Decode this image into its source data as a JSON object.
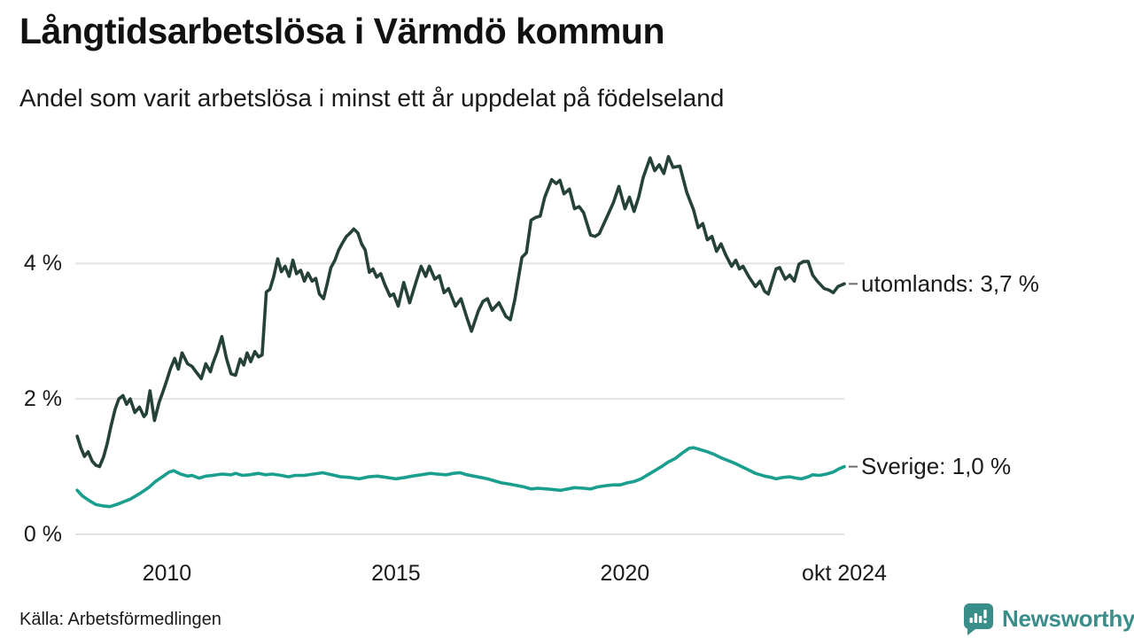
{
  "footer": {
    "source": "Källa: Arbetsförmedlingen",
    "brand": "Newsworthy",
    "brand_color": "#3a8e89",
    "logo_icon": "speech-bubble-bar-chart-icon"
  },
  "chart_data": {
    "type": "line",
    "title": "Långtidsarbetslösa i Värmdö kommun",
    "subtitle": "Andel som varit arbetslösa i minst ett år uppdelat på födelseland",
    "unit": "%",
    "grid": true,
    "grid_color": "#e2e2e2",
    "legend_position": "right-of-line-ends",
    "xlim": [
      2008.0,
      2024.79
    ],
    "ylim": [
      0,
      5.9
    ],
    "x_ticks": [
      {
        "t": 2010.0,
        "label": "2010"
      },
      {
        "t": 2015.0,
        "label": "2015"
      },
      {
        "t": 2020.0,
        "label": "2020"
      },
      {
        "t": 2024.79,
        "label": "okt 2024"
      }
    ],
    "y_ticks": [
      {
        "v": 0,
        "label": "0 %"
      },
      {
        "v": 2,
        "label": "2 %"
      },
      {
        "v": 4,
        "label": "4 %"
      }
    ],
    "series": [
      {
        "name": "utomlands",
        "label": "utomlands: 3,7 %",
        "last_value": "3,7 %",
        "color": "#254139",
        "points": [
          [
            2008.04,
            1.45
          ],
          [
            2008.12,
            1.28
          ],
          [
            2008.2,
            1.15
          ],
          [
            2008.28,
            1.22
          ],
          [
            2008.37,
            1.08
          ],
          [
            2008.45,
            1.02
          ],
          [
            2008.53,
            1.0
          ],
          [
            2008.62,
            1.15
          ],
          [
            2008.7,
            1.35
          ],
          [
            2008.78,
            1.6
          ],
          [
            2008.87,
            1.85
          ],
          [
            2008.95,
            2.0
          ],
          [
            2009.04,
            2.05
          ],
          [
            2009.12,
            1.92
          ],
          [
            2009.2,
            2.0
          ],
          [
            2009.3,
            1.8
          ],
          [
            2009.4,
            1.88
          ],
          [
            2009.5,
            1.74
          ],
          [
            2009.55,
            1.78
          ],
          [
            2009.63,
            2.12
          ],
          [
            2009.73,
            1.68
          ],
          [
            2009.83,
            1.95
          ],
          [
            2009.92,
            2.12
          ],
          [
            2010.0,
            2.28
          ],
          [
            2010.08,
            2.45
          ],
          [
            2010.17,
            2.6
          ],
          [
            2010.25,
            2.44
          ],
          [
            2010.33,
            2.68
          ],
          [
            2010.45,
            2.52
          ],
          [
            2010.55,
            2.48
          ],
          [
            2010.67,
            2.37
          ],
          [
            2010.75,
            2.3
          ],
          [
            2010.85,
            2.52
          ],
          [
            2010.95,
            2.4
          ],
          [
            2011.0,
            2.52
          ],
          [
            2011.1,
            2.7
          ],
          [
            2011.2,
            2.92
          ],
          [
            2011.3,
            2.6
          ],
          [
            2011.4,
            2.37
          ],
          [
            2011.5,
            2.35
          ],
          [
            2011.6,
            2.59
          ],
          [
            2011.68,
            2.5
          ],
          [
            2011.75,
            2.68
          ],
          [
            2011.83,
            2.55
          ],
          [
            2011.92,
            2.7
          ],
          [
            2012.0,
            2.62
          ],
          [
            2012.08,
            2.65
          ],
          [
            2012.17,
            3.58
          ],
          [
            2012.25,
            3.62
          ],
          [
            2012.33,
            3.8
          ],
          [
            2012.42,
            4.07
          ],
          [
            2012.5,
            3.88
          ],
          [
            2012.58,
            3.96
          ],
          [
            2012.67,
            3.81
          ],
          [
            2012.75,
            4.05
          ],
          [
            2012.83,
            3.85
          ],
          [
            2012.92,
            3.9
          ],
          [
            2013.0,
            3.74
          ],
          [
            2013.08,
            3.86
          ],
          [
            2013.17,
            3.74
          ],
          [
            2013.25,
            3.78
          ],
          [
            2013.33,
            3.55
          ],
          [
            2013.42,
            3.48
          ],
          [
            2013.5,
            3.7
          ],
          [
            2013.58,
            3.94
          ],
          [
            2013.67,
            4.05
          ],
          [
            2013.75,
            4.2
          ],
          [
            2013.83,
            4.3
          ],
          [
            2013.92,
            4.4
          ],
          [
            2014.0,
            4.45
          ],
          [
            2014.08,
            4.51
          ],
          [
            2014.17,
            4.45
          ],
          [
            2014.25,
            4.29
          ],
          [
            2014.33,
            4.2
          ],
          [
            2014.42,
            3.87
          ],
          [
            2014.5,
            3.92
          ],
          [
            2014.58,
            3.8
          ],
          [
            2014.67,
            3.85
          ],
          [
            2014.75,
            3.7
          ],
          [
            2014.87,
            3.52
          ],
          [
            2014.95,
            3.55
          ],
          [
            2015.05,
            3.37
          ],
          [
            2015.17,
            3.72
          ],
          [
            2015.3,
            3.42
          ],
          [
            2015.45,
            3.75
          ],
          [
            2015.55,
            3.96
          ],
          [
            2015.65,
            3.81
          ],
          [
            2015.73,
            3.96
          ],
          [
            2015.85,
            3.77
          ],
          [
            2015.95,
            3.82
          ],
          [
            2016.05,
            3.57
          ],
          [
            2016.15,
            3.63
          ],
          [
            2016.3,
            3.37
          ],
          [
            2016.42,
            3.48
          ],
          [
            2016.55,
            3.2
          ],
          [
            2016.65,
            3.0
          ],
          [
            2016.8,
            3.3
          ],
          [
            2016.9,
            3.44
          ],
          [
            2017.0,
            3.48
          ],
          [
            2017.1,
            3.31
          ],
          [
            2017.25,
            3.42
          ],
          [
            2017.4,
            3.22
          ],
          [
            2017.5,
            3.17
          ],
          [
            2017.6,
            3.48
          ],
          [
            2017.75,
            4.09
          ],
          [
            2017.85,
            4.16
          ],
          [
            2017.95,
            4.64
          ],
          [
            2018.05,
            4.68
          ],
          [
            2018.15,
            4.7
          ],
          [
            2018.25,
            4.98
          ],
          [
            2018.4,
            5.24
          ],
          [
            2018.5,
            5.18
          ],
          [
            2018.58,
            5.23
          ],
          [
            2018.67,
            5.03
          ],
          [
            2018.79,
            5.1
          ],
          [
            2018.9,
            4.81
          ],
          [
            2019.0,
            4.84
          ],
          [
            2019.1,
            4.75
          ],
          [
            2019.25,
            4.42
          ],
          [
            2019.35,
            4.4
          ],
          [
            2019.44,
            4.44
          ],
          [
            2019.63,
            4.72
          ],
          [
            2019.75,
            4.9
          ],
          [
            2019.87,
            5.14
          ],
          [
            2020.0,
            4.81
          ],
          [
            2020.1,
            4.98
          ],
          [
            2020.2,
            4.77
          ],
          [
            2020.3,
            4.98
          ],
          [
            2020.4,
            5.27
          ],
          [
            2020.55,
            5.56
          ],
          [
            2020.65,
            5.37
          ],
          [
            2020.75,
            5.46
          ],
          [
            2020.85,
            5.33
          ],
          [
            2020.95,
            5.58
          ],
          [
            2021.05,
            5.42
          ],
          [
            2021.2,
            5.44
          ],
          [
            2021.35,
            5.05
          ],
          [
            2021.5,
            4.79
          ],
          [
            2021.6,
            4.53
          ],
          [
            2021.7,
            4.59
          ],
          [
            2021.8,
            4.35
          ],
          [
            2021.9,
            4.4
          ],
          [
            2022.0,
            4.18
          ],
          [
            2022.1,
            4.29
          ],
          [
            2022.2,
            4.13
          ],
          [
            2022.33,
            3.96
          ],
          [
            2022.42,
            4.05
          ],
          [
            2022.5,
            3.92
          ],
          [
            2022.58,
            3.96
          ],
          [
            2022.7,
            3.81
          ],
          [
            2022.85,
            3.66
          ],
          [
            2022.95,
            3.74
          ],
          [
            2023.05,
            3.59
          ],
          [
            2023.13,
            3.55
          ],
          [
            2023.3,
            3.92
          ],
          [
            2023.38,
            3.94
          ],
          [
            2023.5,
            3.77
          ],
          [
            2023.6,
            3.83
          ],
          [
            2023.7,
            3.74
          ],
          [
            2023.8,
            3.99
          ],
          [
            2023.9,
            4.03
          ],
          [
            2024.0,
            4.03
          ],
          [
            2024.1,
            3.83
          ],
          [
            2024.2,
            3.74
          ],
          [
            2024.35,
            3.63
          ],
          [
            2024.45,
            3.61
          ],
          [
            2024.55,
            3.57
          ],
          [
            2024.65,
            3.66
          ],
          [
            2024.79,
            3.7
          ]
        ]
      },
      {
        "name": "Sverige",
        "label": "Sverige: 1,0 %",
        "last_value": "1,0 %",
        "color": "#1a9e8e",
        "points": [
          [
            2008.04,
            0.65
          ],
          [
            2008.15,
            0.57
          ],
          [
            2008.3,
            0.5
          ],
          [
            2008.45,
            0.44
          ],
          [
            2008.6,
            0.42
          ],
          [
            2008.75,
            0.41
          ],
          [
            2008.9,
            0.44
          ],
          [
            2009.05,
            0.48
          ],
          [
            2009.2,
            0.52
          ],
          [
            2009.4,
            0.6
          ],
          [
            2009.6,
            0.69
          ],
          [
            2009.75,
            0.78
          ],
          [
            2009.9,
            0.85
          ],
          [
            2010.05,
            0.92
          ],
          [
            2010.15,
            0.94
          ],
          [
            2010.3,
            0.89
          ],
          [
            2010.45,
            0.86
          ],
          [
            2010.55,
            0.87
          ],
          [
            2010.7,
            0.83
          ],
          [
            2010.85,
            0.86
          ],
          [
            2011.0,
            0.87
          ],
          [
            2011.2,
            0.89
          ],
          [
            2011.4,
            0.88
          ],
          [
            2011.5,
            0.9
          ],
          [
            2011.65,
            0.87
          ],
          [
            2011.8,
            0.88
          ],
          [
            2012.0,
            0.9
          ],
          [
            2012.15,
            0.88
          ],
          [
            2012.3,
            0.89
          ],
          [
            2012.5,
            0.87
          ],
          [
            2012.65,
            0.85
          ],
          [
            2012.8,
            0.87
          ],
          [
            2013.0,
            0.87
          ],
          [
            2013.2,
            0.89
          ],
          [
            2013.4,
            0.91
          ],
          [
            2013.6,
            0.88
          ],
          [
            2013.8,
            0.85
          ],
          [
            2014.0,
            0.84
          ],
          [
            2014.2,
            0.82
          ],
          [
            2014.4,
            0.85
          ],
          [
            2014.6,
            0.86
          ],
          [
            2014.8,
            0.84
          ],
          [
            2015.0,
            0.82
          ],
          [
            2015.2,
            0.84
          ],
          [
            2015.35,
            0.86
          ],
          [
            2015.55,
            0.88
          ],
          [
            2015.75,
            0.9
          ],
          [
            2015.9,
            0.89
          ],
          [
            2016.1,
            0.88
          ],
          [
            2016.25,
            0.9
          ],
          [
            2016.4,
            0.91
          ],
          [
            2016.55,
            0.88
          ],
          [
            2016.7,
            0.86
          ],
          [
            2016.85,
            0.84
          ],
          [
            2017.0,
            0.82
          ],
          [
            2017.15,
            0.79
          ],
          [
            2017.3,
            0.76
          ],
          [
            2017.5,
            0.74
          ],
          [
            2017.65,
            0.72
          ],
          [
            2017.8,
            0.7
          ],
          [
            2017.95,
            0.67
          ],
          [
            2018.1,
            0.68
          ],
          [
            2018.3,
            0.67
          ],
          [
            2018.45,
            0.66
          ],
          [
            2018.6,
            0.65
          ],
          [
            2018.75,
            0.67
          ],
          [
            2018.9,
            0.69
          ],
          [
            2019.1,
            0.68
          ],
          [
            2019.25,
            0.67
          ],
          [
            2019.4,
            0.7
          ],
          [
            2019.6,
            0.72
          ],
          [
            2019.75,
            0.73
          ],
          [
            2019.9,
            0.73
          ],
          [
            2020.05,
            0.76
          ],
          [
            2020.2,
            0.78
          ],
          [
            2020.35,
            0.82
          ],
          [
            2020.5,
            0.88
          ],
          [
            2020.65,
            0.94
          ],
          [
            2020.8,
            1.0
          ],
          [
            2020.95,
            1.07
          ],
          [
            2021.1,
            1.12
          ],
          [
            2021.25,
            1.2
          ],
          [
            2021.4,
            1.27
          ],
          [
            2021.5,
            1.28
          ],
          [
            2021.65,
            1.25
          ],
          [
            2021.8,
            1.22
          ],
          [
            2021.95,
            1.18
          ],
          [
            2022.1,
            1.13
          ],
          [
            2022.25,
            1.09
          ],
          [
            2022.4,
            1.05
          ],
          [
            2022.55,
            1.0
          ],
          [
            2022.7,
            0.95
          ],
          [
            2022.85,
            0.9
          ],
          [
            2023.05,
            0.86
          ],
          [
            2023.2,
            0.84
          ],
          [
            2023.3,
            0.82
          ],
          [
            2023.45,
            0.84
          ],
          [
            2023.6,
            0.85
          ],
          [
            2023.75,
            0.83
          ],
          [
            2023.85,
            0.82
          ],
          [
            2024.0,
            0.85
          ],
          [
            2024.1,
            0.88
          ],
          [
            2024.25,
            0.87
          ],
          [
            2024.4,
            0.89
          ],
          [
            2024.55,
            0.92
          ],
          [
            2024.68,
            0.97
          ],
          [
            2024.79,
            1.0
          ]
        ]
      }
    ]
  }
}
